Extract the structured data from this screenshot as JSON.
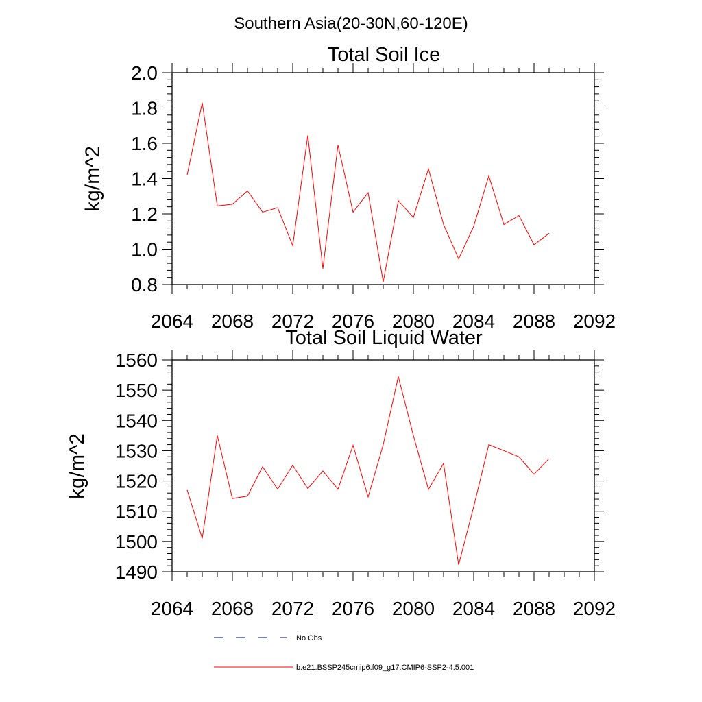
{
  "suptitle": "Southern Asia(20-30N,60-120E)",
  "colors": {
    "series": "#ff0000",
    "obs": "#000080",
    "axis": "#000000"
  },
  "chart_data": [
    {
      "type": "line",
      "title": "Total Soil Ice",
      "ylabel": "kg/m^2",
      "xlim": [
        2064,
        2092
      ],
      "ylim": [
        0.8,
        2.0
      ],
      "xticks": [
        2064,
        2068,
        2072,
        2076,
        2080,
        2084,
        2088,
        2092
      ],
      "xtick_labels": [
        "2064",
        "2068",
        "2072",
        "2076",
        "2080",
        "2084",
        "2088",
        "2092"
      ],
      "yticks": [
        0.8,
        1.0,
        1.2,
        1.4,
        1.6,
        1.8,
        2.0
      ],
      "ytick_labels": [
        "0.8",
        "1.0",
        "1.2",
        "1.4",
        "1.6",
        "1.8",
        "2.0"
      ],
      "grid": false,
      "series": [
        {
          "x": [
            2065,
            2066,
            2067,
            2068,
            2069,
            2070,
            2071,
            2072,
            2073,
            2074,
            2075,
            2076,
            2077,
            2078,
            2079,
            2080,
            2081,
            2082,
            2083,
            2084,
            2085,
            2086,
            2087,
            2088,
            2089
          ],
          "y": [
            1.42,
            1.83,
            1.245,
            1.255,
            1.33,
            1.21,
            1.235,
            1.02,
            1.645,
            0.89,
            1.59,
            1.21,
            1.32,
            0.815,
            1.275,
            1.18,
            1.455,
            1.14,
            0.945,
            1.13,
            1.415,
            1.14,
            1.19,
            1.025,
            1.09
          ]
        }
      ]
    },
    {
      "type": "line",
      "title": "Total Soil Liquid Water",
      "ylabel": "kg/m^2",
      "xlim": [
        2064,
        2092
      ],
      "ylim": [
        1490,
        1560
      ],
      "xticks": [
        2064,
        2068,
        2072,
        2076,
        2080,
        2084,
        2088,
        2092
      ],
      "xtick_labels": [
        "2064",
        "2068",
        "2072",
        "2076",
        "2080",
        "2084",
        "2088",
        "2092"
      ],
      "yticks": [
        1490,
        1500,
        1510,
        1520,
        1530,
        1540,
        1550,
        1560
      ],
      "ytick_labels": [
        "1490",
        "1500",
        "1510",
        "1520",
        "1530",
        "1540",
        "1550",
        "1560"
      ],
      "grid": false,
      "series": [
        {
          "x": [
            2065,
            2066,
            2067,
            2068,
            2069,
            2070,
            2071,
            2072,
            2073,
            2074,
            2075,
            2076,
            2077,
            2078,
            2079,
            2080,
            2081,
            2082,
            2083,
            2084,
            2085,
            2086,
            2087,
            2088,
            2089
          ],
          "y": [
            1517,
            1501,
            1535,
            1514.2,
            1515,
            1524.7,
            1517.3,
            1525.2,
            1517.5,
            1523.3,
            1517.3,
            1531.8,
            1514.7,
            1532,
            1554.5,
            1535,
            1517.2,
            1525.8,
            1492.3,
            1511.5,
            1532,
            1530,
            1528,
            1522.2,
            1527.4
          ]
        }
      ]
    }
  ],
  "legend": [
    {
      "label": "No Obs",
      "style": "dashed"
    },
    {
      "label": "b.e21.BSSP245cmip6.f09_g17.CMIP6-SSP2-4.5.001",
      "style": "solid"
    }
  ]
}
